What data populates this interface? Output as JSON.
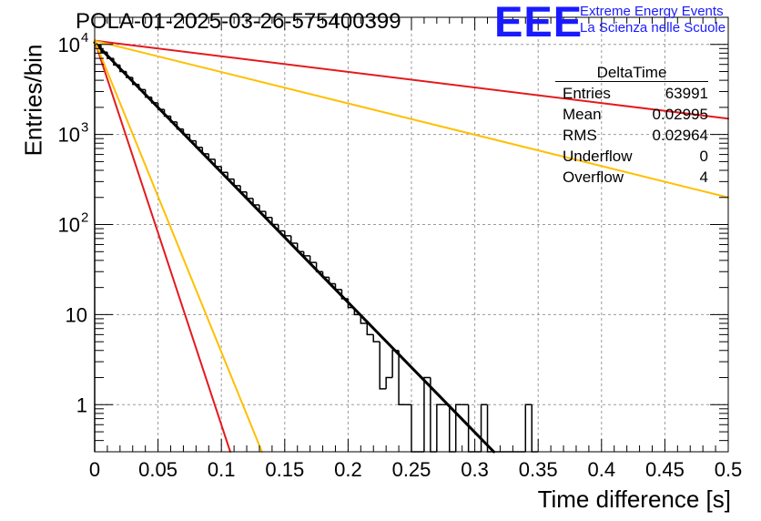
{
  "title": "POLA-01-2025-03-26-575400399",
  "logo": {
    "text": "EEE",
    "line1": "Extreme Energy Events",
    "line2": "La Scienza nelle Scuole",
    "color": "#1a1aff"
  },
  "stats_box": {
    "title": "DeltaTime",
    "rows": [
      {
        "label": "Entries",
        "value": "63991"
      },
      {
        "label": "Mean",
        "value": "0.02995"
      },
      {
        "label": "RMS",
        "value": "0.02964"
      },
      {
        "label": "Underflow",
        "value": "0"
      },
      {
        "label": "Overflow",
        "value": "4"
      }
    ]
  },
  "chart_data": {
    "type": "histogram",
    "title": "POLA-01-2025-03-26-575400399",
    "xlabel": "Time difference [s]",
    "ylabel": "Entries/bin",
    "xlim": [
      0,
      0.5
    ],
    "ylim": [
      0.3,
      20000
    ],
    "yscale": "log",
    "grid": true,
    "x_ticks": [
      0,
      0.05,
      0.1,
      0.15,
      0.2,
      0.25,
      0.3,
      0.35,
      0.4,
      0.45,
      0.5
    ],
    "x_tick_labels": [
      "0",
      "0.05",
      "0.1",
      "0.15",
      "0.2",
      "0.25",
      "0.3",
      "0.35",
      "0.4",
      "0.45",
      "0.5"
    ],
    "y_ticks": [
      1,
      10,
      100,
      1000,
      10000
    ],
    "y_tick_labels": [
      {
        "base": "1",
        "exp": ""
      },
      {
        "base": "10",
        "exp": ""
      },
      {
        "base": "10",
        "exp": "2"
      },
      {
        "base": "10",
        "exp": "3"
      },
      {
        "base": "10",
        "exp": "4"
      }
    ],
    "bin_width": 0.005,
    "histogram_bins": [
      {
        "x": 0.0,
        "y": 9800
      },
      {
        "x": 0.005,
        "y": 8200
      },
      {
        "x": 0.01,
        "y": 7000
      },
      {
        "x": 0.015,
        "y": 5900
      },
      {
        "x": 0.02,
        "y": 5000
      },
      {
        "x": 0.025,
        "y": 4300
      },
      {
        "x": 0.03,
        "y": 3600
      },
      {
        "x": 0.035,
        "y": 3150
      },
      {
        "x": 0.04,
        "y": 2600
      },
      {
        "x": 0.045,
        "y": 2250
      },
      {
        "x": 0.05,
        "y": 1900
      },
      {
        "x": 0.055,
        "y": 1600
      },
      {
        "x": 0.06,
        "y": 1380
      },
      {
        "x": 0.065,
        "y": 1150
      },
      {
        "x": 0.07,
        "y": 1000
      },
      {
        "x": 0.075,
        "y": 850
      },
      {
        "x": 0.08,
        "y": 720
      },
      {
        "x": 0.085,
        "y": 610
      },
      {
        "x": 0.09,
        "y": 530
      },
      {
        "x": 0.095,
        "y": 440
      },
      {
        "x": 0.1,
        "y": 380
      },
      {
        "x": 0.105,
        "y": 320
      },
      {
        "x": 0.11,
        "y": 270
      },
      {
        "x": 0.115,
        "y": 230
      },
      {
        "x": 0.12,
        "y": 195
      },
      {
        "x": 0.125,
        "y": 165
      },
      {
        "x": 0.13,
        "y": 140
      },
      {
        "x": 0.135,
        "y": 120
      },
      {
        "x": 0.14,
        "y": 100
      },
      {
        "x": 0.145,
        "y": 85
      },
      {
        "x": 0.15,
        "y": 75
      },
      {
        "x": 0.155,
        "y": 62
      },
      {
        "x": 0.16,
        "y": 50
      },
      {
        "x": 0.165,
        "y": 45
      },
      {
        "x": 0.17,
        "y": 38
      },
      {
        "x": 0.175,
        "y": 30
      },
      {
        "x": 0.18,
        "y": 26
      },
      {
        "x": 0.185,
        "y": 22
      },
      {
        "x": 0.19,
        "y": 19
      },
      {
        "x": 0.195,
        "y": 15
      },
      {
        "x": 0.2,
        "y": 12
      },
      {
        "x": 0.205,
        "y": 10
      },
      {
        "x": 0.21,
        "y": 8
      },
      {
        "x": 0.215,
        "y": 6
      },
      {
        "x": 0.22,
        "y": 5
      },
      {
        "x": 0.225,
        "y": 1.5
      },
      {
        "x": 0.23,
        "y": 2
      },
      {
        "x": 0.235,
        "y": 4
      },
      {
        "x": 0.24,
        "y": 1
      },
      {
        "x": 0.245,
        "y": 1
      },
      {
        "x": 0.25,
        "y": 0
      },
      {
        "x": 0.255,
        "y": 0
      },
      {
        "x": 0.26,
        "y": 2
      },
      {
        "x": 0.265,
        "y": 0
      },
      {
        "x": 0.27,
        "y": 1
      },
      {
        "x": 0.275,
        "y": 1
      },
      {
        "x": 0.28,
        "y": 0
      },
      {
        "x": 0.285,
        "y": 1
      },
      {
        "x": 0.29,
        "y": 1
      },
      {
        "x": 0.295,
        "y": 0
      },
      {
        "x": 0.3,
        "y": 0
      },
      {
        "x": 0.305,
        "y": 1
      },
      {
        "x": 0.31,
        "y": 0
      },
      {
        "x": 0.315,
        "y": 0
      },
      {
        "x": 0.32,
        "y": 0
      },
      {
        "x": 0.325,
        "y": 0
      },
      {
        "x": 0.33,
        "y": 0
      },
      {
        "x": 0.335,
        "y": 0
      },
      {
        "x": 0.34,
        "y": 1
      },
      {
        "x": 0.345,
        "y": 0
      }
    ],
    "fit_lines": [
      {
        "name": "fit",
        "color": "#000000",
        "width": 3,
        "x": [
          0.0,
          0.315
        ],
        "y": [
          10500,
          0.3
        ]
      },
      {
        "name": "red-slow",
        "color": "#e41a1c",
        "width": 2,
        "x": [
          0.0,
          0.5
        ],
        "y": [
          11000,
          1500
        ]
      },
      {
        "name": "orange-slow",
        "color": "#ffbf00",
        "width": 2,
        "x": [
          0.0,
          0.5
        ],
        "y": [
          11000,
          200
        ]
      },
      {
        "name": "red-fast",
        "color": "#e41a1c",
        "width": 2,
        "x": [
          0.0,
          0.107
        ],
        "y": [
          11000,
          0.3
        ]
      },
      {
        "name": "orange-fast",
        "color": "#ffbf00",
        "width": 2,
        "x": [
          0.0,
          0.132
        ],
        "y": [
          11000,
          0.3
        ]
      }
    ]
  }
}
